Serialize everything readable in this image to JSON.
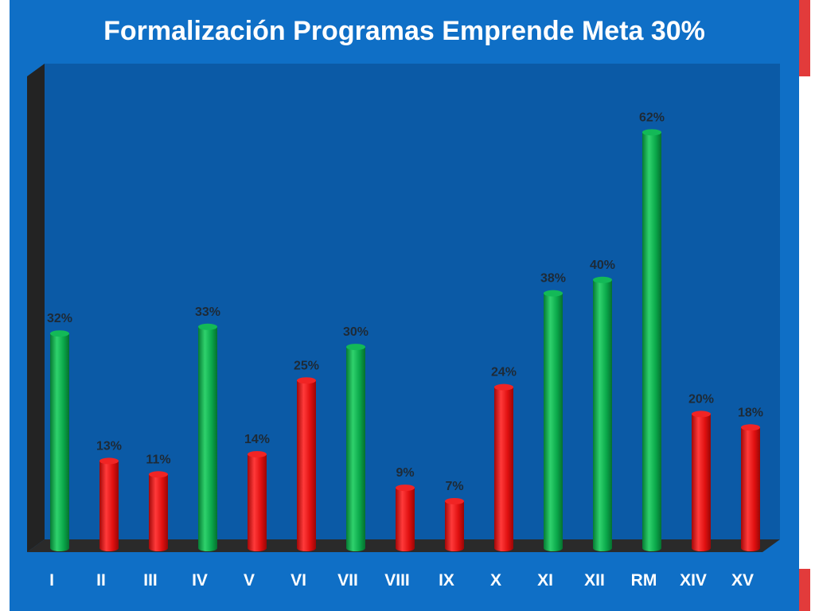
{
  "title": "Formalización Programas Emprende Meta 30%",
  "chart_data": {
    "type": "bar",
    "title": "Formalización Programas Emprende Meta 30%",
    "xlabel": "",
    "ylabel": "",
    "ylim": [
      0,
      70
    ],
    "grid": false,
    "legend": "none",
    "value_suffix": "%",
    "categories": [
      "I",
      "II",
      "III",
      "IV",
      "V",
      "VI",
      "VII",
      "VIII",
      "IX",
      "X",
      "XI",
      "XII",
      "RM",
      "XIV",
      "XV"
    ],
    "values": [
      32,
      13,
      11,
      33,
      14,
      25,
      30,
      9,
      7,
      24,
      38,
      40,
      62,
      20,
      18
    ],
    "bar_colors": [
      "#0aa84a",
      "#e01010",
      "#e01010",
      "#0aa84a",
      "#e01010",
      "#e01010",
      "#0aa84a",
      "#e01010",
      "#e01010",
      "#e01010",
      "#0aa84a",
      "#0aa84a",
      "#0aa84a",
      "#e01010",
      "#e01010"
    ]
  },
  "colors": {
    "background": "#0f6fc6",
    "plot_area": "#0b5aa6",
    "meets_target": "#0aa84a",
    "below_target": "#e01010",
    "accent": "#e23b3b",
    "text": "#ffffff",
    "label_text": "#1e2a36"
  }
}
